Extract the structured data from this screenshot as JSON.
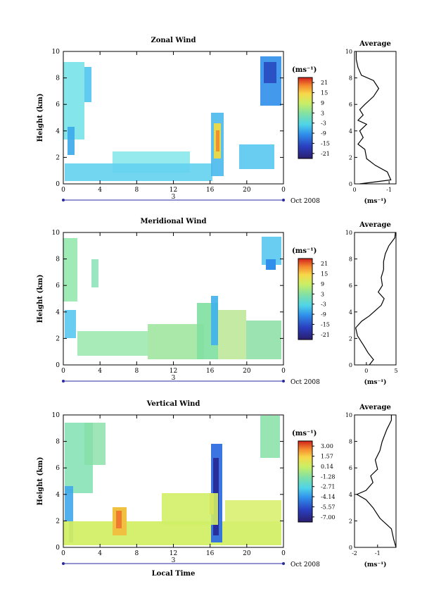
{
  "figure": {
    "colorbar_unit": "(ms⁻¹)",
    "average_xlabel": "(ms⁻¹)",
    "xtick_labels": [
      "0",
      "4",
      "8",
      "12",
      "16",
      "20",
      "0"
    ],
    "ytick_labels": [
      "0",
      "2",
      "4",
      "6",
      "8",
      "10"
    ],
    "date_label": "Oct 2008",
    "day_label": "3",
    "ylabel": "Height (km)",
    "xlabel": "Local Time"
  },
  "chart_data": [
    {
      "type": "heatmap",
      "title": "Zonal Wind",
      "xlabel": "",
      "ylabel": "Height (km)",
      "xlim": [
        0,
        24
      ],
      "ylim": [
        0,
        10
      ],
      "colorbar": {
        "unit": "(ms⁻¹)",
        "ticks": [
          21,
          15,
          9,
          3,
          -3,
          -9,
          -15,
          -21
        ]
      },
      "average_profile": {
        "title": "Average",
        "xlabel": "(ms⁻¹)",
        "xlim": [
          0,
          -1.2
        ],
        "xticks": [
          "0",
          "-1"
        ],
        "profile": [
          [
            -0.15,
            0
          ],
          [
            -1.05,
            0.3
          ],
          [
            -0.95,
            0.9
          ],
          [
            -0.6,
            1.4
          ],
          [
            -0.35,
            1.9
          ],
          [
            -0.3,
            2.6
          ],
          [
            -0.1,
            3.0
          ],
          [
            -0.25,
            3.5
          ],
          [
            -0.15,
            4.0
          ],
          [
            -0.35,
            4.5
          ],
          [
            -0.1,
            4.8
          ],
          [
            -0.25,
            5.2
          ],
          [
            -0.15,
            5.6
          ],
          [
            -0.3,
            6.0
          ],
          [
            -0.55,
            6.6
          ],
          [
            -0.7,
            7.2
          ],
          [
            -0.55,
            7.8
          ],
          [
            -0.2,
            8.2
          ],
          [
            -0.1,
            8.8
          ],
          [
            -0.05,
            9.4
          ],
          [
            -0.05,
            10
          ]
        ]
      }
    },
    {
      "type": "heatmap",
      "title": "Meridional Wind",
      "xlabel": "",
      "ylabel": "Height (km)",
      "xlim": [
        0,
        24
      ],
      "ylim": [
        0,
        10
      ],
      "colorbar": {
        "unit": "(ms⁻¹)",
        "ticks": [
          21,
          15,
          9,
          3,
          -3,
          -9,
          -15,
          -21
        ]
      },
      "average_profile": {
        "title": "Average",
        "xlabel": "(ms⁻¹)",
        "xlim": [
          -2,
          5
        ],
        "xticks": [
          "0",
          "5"
        ],
        "profile": [
          [
            0.5,
            0
          ],
          [
            1.2,
            0.4
          ],
          [
            0.3,
            0.9
          ],
          [
            -0.5,
            1.5
          ],
          [
            -1.5,
            2.2
          ],
          [
            -1.8,
            2.8
          ],
          [
            -0.8,
            3.3
          ],
          [
            0.5,
            3.7
          ],
          [
            1.5,
            4.1
          ],
          [
            2.5,
            4.5
          ],
          [
            3.0,
            5.0
          ],
          [
            2.0,
            5.5
          ],
          [
            2.7,
            6.0
          ],
          [
            2.5,
            6.6
          ],
          [
            2.9,
            7.2
          ],
          [
            2.9,
            7.8
          ],
          [
            3.2,
            8.4
          ],
          [
            3.8,
            9.0
          ],
          [
            4.8,
            9.6
          ],
          [
            4.9,
            10
          ]
        ]
      }
    },
    {
      "type": "heatmap",
      "title": "Vertical Wind",
      "xlabel": "Local Time",
      "ylabel": "Height (km)",
      "xlim": [
        0,
        24
      ],
      "ylim": [
        0,
        10
      ],
      "colorbar": {
        "unit": "(ms⁻¹)",
        "ticks": [
          3.0,
          1.57,
          0.14,
          -1.28,
          -2.71,
          -4.14,
          -5.57,
          -7.0
        ],
        "tick_labels": [
          "3.00",
          "1.57",
          "0.14",
          "-1.28",
          "-2.71",
          "-4.14",
          "-5.57",
          "-7.00"
        ]
      },
      "average_profile": {
        "title": "Average",
        "xlabel": "(ms⁻¹)",
        "xlim": [
          -2,
          -0.2
        ],
        "xticks": [
          "-2",
          "-1"
        ],
        "profile": [
          [
            -0.2,
            0
          ],
          [
            -0.3,
            0.6
          ],
          [
            -0.4,
            1.4
          ],
          [
            -0.9,
            2.2
          ],
          [
            -1.2,
            3.0
          ],
          [
            -1.5,
            3.6
          ],
          [
            -1.9,
            4.0
          ],
          [
            -1.5,
            4.3
          ],
          [
            -1.2,
            4.9
          ],
          [
            -1.3,
            5.4
          ],
          [
            -1.0,
            5.9
          ],
          [
            -1.1,
            6.6
          ],
          [
            -0.9,
            7.3
          ],
          [
            -0.8,
            8.0
          ],
          [
            -0.6,
            8.9
          ],
          [
            -0.4,
            9.6
          ],
          [
            -0.4,
            10
          ]
        ]
      }
    }
  ]
}
